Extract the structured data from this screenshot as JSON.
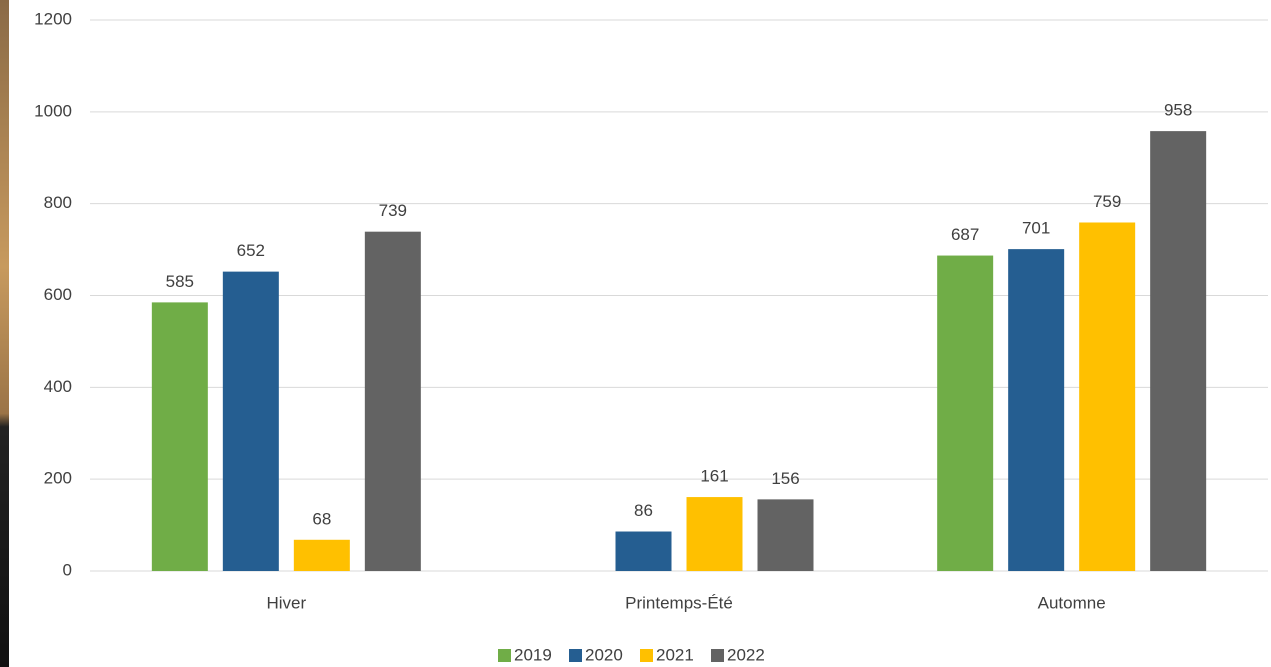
{
  "chart_data": {
    "type": "bar",
    "categories": [
      "Hiver",
      "Printemps-Été",
      "Automne"
    ],
    "series": [
      {
        "name": "2019",
        "color": "#70ad47",
        "values": [
          585,
          null,
          687
        ]
      },
      {
        "name": "2020",
        "color": "#255e91",
        "values": [
          652,
          86,
          701
        ]
      },
      {
        "name": "2021",
        "color": "#ffc000",
        "values": [
          68,
          161,
          759
        ]
      },
      {
        "name": "2022",
        "color": "#636363",
        "values": [
          739,
          156,
          958
        ]
      }
    ],
    "ylim": [
      0,
      1200
    ],
    "yticks": [
      0,
      200,
      400,
      600,
      800,
      1000,
      1200
    ],
    "grid": true,
    "legend": "bottom"
  }
}
